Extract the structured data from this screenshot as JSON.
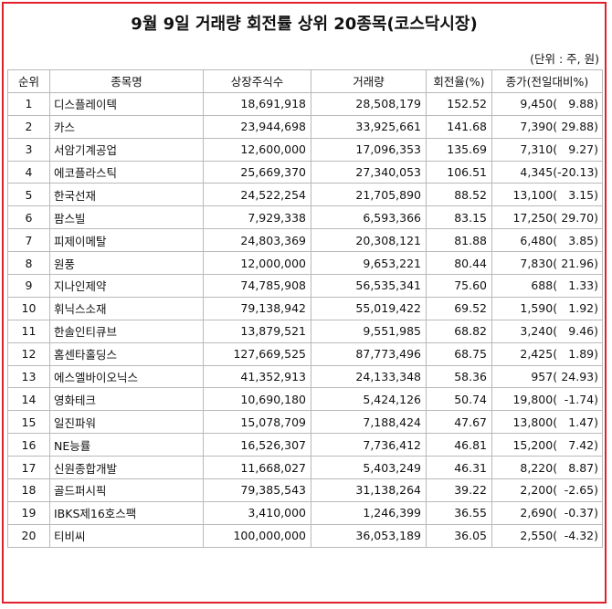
{
  "title": "9월 9일 거래량 회전률 상위 20종목(코스닥시장)",
  "unit": "(단위 : 주, 원)",
  "columns": [
    "순위",
    "종목명",
    "상장주식수",
    "거래량",
    "회전율(%)",
    "종가(전일대비%)"
  ],
  "rows": [
    {
      "rank": "1",
      "name": "디스플레이텍",
      "shares": "18,691,918",
      "volume": "28,508,179",
      "turnover": "152.52",
      "price": "9,450",
      "change": "9.88"
    },
    {
      "rank": "2",
      "name": "카스",
      "shares": "23,944,698",
      "volume": "33,925,661",
      "turnover": "141.68",
      "price": "7,390",
      "change": "29.88"
    },
    {
      "rank": "3",
      "name": "서암기계공업",
      "shares": "12,600,000",
      "volume": "17,096,353",
      "turnover": "135.69",
      "price": "7,310",
      "change": "9.27"
    },
    {
      "rank": "4",
      "name": "에코플라스틱",
      "shares": "25,669,370",
      "volume": "27,340,053",
      "turnover": "106.51",
      "price": "4,345",
      "change": "-20.13"
    },
    {
      "rank": "5",
      "name": "한국선재",
      "shares": "24,522,254",
      "volume": "21,705,890",
      "turnover": "88.52",
      "price": "13,100",
      "change": "3.15"
    },
    {
      "rank": "6",
      "name": "팜스빌",
      "shares": "7,929,338",
      "volume": "6,593,366",
      "turnover": "83.15",
      "price": "17,250",
      "change": "29.70"
    },
    {
      "rank": "7",
      "name": "피제이메탈",
      "shares": "24,803,369",
      "volume": "20,308,121",
      "turnover": "81.88",
      "price": "6,480",
      "change": "3.85"
    },
    {
      "rank": "8",
      "name": "원풍",
      "shares": "12,000,000",
      "volume": "9,653,221",
      "turnover": "80.44",
      "price": "7,830",
      "change": "21.96"
    },
    {
      "rank": "9",
      "name": "지나인제약",
      "shares": "74,785,908",
      "volume": "56,535,341",
      "turnover": "75.60",
      "price": "688",
      "change": "1.33"
    },
    {
      "rank": "10",
      "name": "휘닉스소재",
      "shares": "79,138,942",
      "volume": "55,019,422",
      "turnover": "69.52",
      "price": "1,590",
      "change": "1.92"
    },
    {
      "rank": "11",
      "name": "한솔인티큐브",
      "shares": "13,879,521",
      "volume": "9,551,985",
      "turnover": "68.82",
      "price": "3,240",
      "change": "9.46"
    },
    {
      "rank": "12",
      "name": "홈센타홀딩스",
      "shares": "127,669,525",
      "volume": "87,773,496",
      "turnover": "68.75",
      "price": "2,425",
      "change": "1.89"
    },
    {
      "rank": "13",
      "name": "에스엘바이오닉스",
      "shares": "41,352,913",
      "volume": "24,133,348",
      "turnover": "58.36",
      "price": "957",
      "change": "24.93"
    },
    {
      "rank": "14",
      "name": "영화테크",
      "shares": "10,690,180",
      "volume": "5,424,126",
      "turnover": "50.74",
      "price": "19,800",
      "change": "-1.74"
    },
    {
      "rank": "15",
      "name": "일진파워",
      "shares": "15,078,709",
      "volume": "7,188,424",
      "turnover": "47.67",
      "price": "13,800",
      "change": "1.47"
    },
    {
      "rank": "16",
      "name": "NE능률",
      "shares": "16,526,307",
      "volume": "7,736,412",
      "turnover": "46.81",
      "price": "15,200",
      "change": "7.42"
    },
    {
      "rank": "17",
      "name": "신원종합개발",
      "shares": "11,668,027",
      "volume": "5,403,249",
      "turnover": "46.31",
      "price": "8,220",
      "change": "8.87"
    },
    {
      "rank": "18",
      "name": "골드퍼시픽",
      "shares": "79,385,543",
      "volume": "31,138,264",
      "turnover": "39.22",
      "price": "2,200",
      "change": "-2.65"
    },
    {
      "rank": "19",
      "name": "IBKS제16호스팩",
      "shares": "3,410,000",
      "volume": "1,246,399",
      "turnover": "36.55",
      "price": "2,690",
      "change": "-0.37"
    },
    {
      "rank": "20",
      "name": "티비씨",
      "shares": "100,000,000",
      "volume": "36,053,189",
      "turnover": "36.05",
      "price": "2,550",
      "change": "-4.32"
    }
  ],
  "colors": {
    "border": "#e0202a",
    "grid": "#b9b9b9"
  }
}
